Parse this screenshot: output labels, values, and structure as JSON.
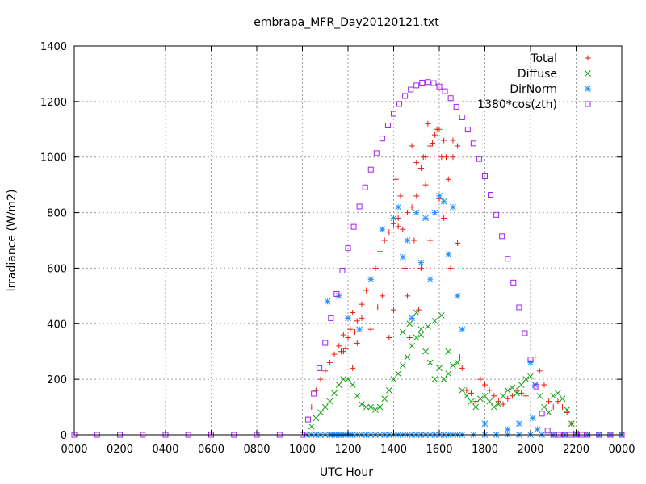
{
  "chart_data": {
    "type": "scatter",
    "title": "embrapa_MFR_Day20120121.txt",
    "xlabel": "UTC Hour",
    "ylabel": "Irradiance (W/m2)",
    "xlim": [
      0,
      2400
    ],
    "ylim": [
      0,
      1400
    ],
    "x_tick_labels": [
      "0000",
      "0200",
      "0400",
      "0600",
      "0800",
      "1000",
      "1200",
      "1400",
      "1600",
      "1800",
      "2000",
      "2200",
      "0000"
    ],
    "y_ticks": [
      0,
      200,
      400,
      600,
      800,
      1000,
      1200,
      1400
    ],
    "grid": true,
    "legend_position": "top-right",
    "series": [
      {
        "name": "Total",
        "marker": "+",
        "color": "#e51e10",
        "x": [
          1040,
          1060,
          1080,
          1100,
          1120,
          1140,
          1160,
          1170,
          1180,
          1190,
          1200,
          1210,
          1220,
          1230,
          1240,
          1260,
          1280,
          1300,
          1320,
          1340,
          1360,
          1380,
          1400,
          1420,
          1440,
          1460,
          1480,
          1500,
          1520,
          1540,
          1560,
          1580,
          1600,
          1620,
          1640,
          1660,
          1680,
          1700,
          1720,
          1740,
          1760,
          1780,
          1800,
          1820,
          1840,
          1860,
          1880,
          1900,
          1920,
          1940,
          1960,
          1980,
          2000,
          2020,
          2040,
          2060,
          2080,
          2100,
          2120,
          2140,
          2160,
          2180,
          2200,
          1180,
          1200,
          1220,
          1240,
          1260,
          1300,
          1330,
          1350,
          1380,
          1400,
          1410,
          1420,
          1430,
          1450,
          1460,
          1470,
          1480,
          1490,
          1500,
          1510,
          1520,
          1530,
          1540,
          1550,
          1560,
          1570,
          1580,
          1590,
          1600,
          1610,
          1620,
          1630,
          1650,
          1660,
          1680,
          1690
        ],
        "y": [
          100,
          160,
          200,
          230,
          260,
          290,
          320,
          300,
          360,
          310,
          420,
          380,
          440,
          370,
          410,
          470,
          520,
          560,
          600,
          660,
          700,
          730,
          760,
          780,
          740,
          800,
          820,
          860,
          960,
          1000,
          1040,
          1080,
          1100,
          1060,
          920,
          1000,
          1040,
          240,
          160,
          150,
          120,
          200,
          180,
          160,
          140,
          120,
          110,
          130,
          140,
          160,
          150,
          140,
          260,
          280,
          230,
          180,
          120,
          100,
          120,
          100,
          80,
          40,
          10,
          300,
          350,
          240,
          330,
          420,
          380,
          460,
          500,
          350,
          450,
          920,
          750,
          860,
          600,
          500,
          350,
          1040,
          700,
          980,
          450,
          600,
          1000,
          900,
          1120,
          700,
          1050,
          800,
          1100,
          850,
          1000,
          780,
          1000,
          600,
          1060,
          690,
          280
        ]
      },
      {
        "name": "Diffuse",
        "marker": "x",
        "color": "#10a010",
        "x": [
          1040,
          1060,
          1080,
          1100,
          1120,
          1140,
          1160,
          1180,
          1200,
          1220,
          1240,
          1260,
          1280,
          1300,
          1320,
          1340,
          1360,
          1380,
          1400,
          1420,
          1440,
          1460,
          1480,
          1500,
          1520,
          1540,
          1560,
          1580,
          1600,
          1620,
          1640,
          1660,
          1680,
          1700,
          1720,
          1740,
          1760,
          1780,
          1800,
          1820,
          1840,
          1860,
          1880,
          1900,
          1920,
          1940,
          1960,
          1980,
          2000,
          2020,
          2040,
          2060,
          2080,
          2100,
          2120,
          2140,
          2160,
          2180,
          2200,
          1440,
          1470,
          1500,
          1520,
          1550,
          1580,
          1610,
          1640,
          1660
        ],
        "y": [
          30,
          60,
          80,
          100,
          120,
          150,
          180,
          200,
          200,
          180,
          140,
          110,
          100,
          100,
          90,
          100,
          130,
          160,
          200,
          220,
          250,
          280,
          320,
          350,
          380,
          300,
          260,
          200,
          240,
          200,
          220,
          250,
          260,
          160,
          140,
          120,
          100,
          130,
          140,
          120,
          100,
          110,
          140,
          160,
          170,
          150,
          180,
          200,
          210,
          180,
          140,
          100,
          80,
          140,
          150,
          130,
          90,
          40,
          5,
          370,
          400,
          440,
          360,
          390,
          410,
          430,
          300,
          250
        ]
      },
      {
        "name": "DirNorm",
        "marker": "*",
        "color": "#1e90ff",
        "x": [
          1020,
          1040,
          1060,
          1080,
          1100,
          1120,
          1130,
          1140,
          1150,
          1160,
          1170,
          1180,
          1190,
          1200,
          1210,
          1220,
          1240,
          1260,
          1280,
          1300,
          1320,
          1340,
          1360,
          1380,
          1400,
          1420,
          1440,
          1460,
          1480,
          1500,
          1520,
          1540,
          1560,
          1580,
          1600,
          1620,
          1640,
          1660,
          1680,
          1700,
          1750,
          1800,
          1850,
          1900,
          1950,
          2000,
          2050,
          2100,
          2150,
          2200,
          2250,
          2300,
          2350,
          2400,
          1110,
          1160,
          1200,
          1250,
          1300,
          1350,
          1400,
          1420,
          1440,
          1460,
          1480,
          1500,
          1520,
          1540,
          1560,
          1580,
          1600,
          1620,
          1640,
          1660,
          1680,
          1700,
          1800,
          1900,
          1950,
          2000,
          2010,
          2020,
          2030
        ],
        "y": [
          0,
          0,
          0,
          0,
          0,
          0,
          0,
          0,
          0,
          0,
          0,
          0,
          0,
          0,
          0,
          0,
          0,
          0,
          0,
          0,
          0,
          0,
          0,
          0,
          0,
          0,
          0,
          0,
          0,
          0,
          0,
          0,
          0,
          0,
          0,
          0,
          0,
          0,
          0,
          0,
          0,
          0,
          0,
          0,
          0,
          0,
          0,
          0,
          0,
          0,
          0,
          0,
          0,
          0,
          480,
          500,
          420,
          380,
          560,
          740,
          780,
          820,
          640,
          700,
          420,
          800,
          620,
          780,
          560,
          800,
          860,
          840,
          650,
          820,
          500,
          380,
          40,
          20,
          40,
          260,
          60,
          180,
          20
        ]
      },
      {
        "name": "1380*cos(zth)",
        "marker": "square",
        "color": "#a020f0",
        "x": [
          0,
          100,
          200,
          300,
          400,
          500,
          600,
          700,
          800,
          900,
          1000,
          1025,
          1050,
          1075,
          1100,
          1125,
          1150,
          1175,
          1200,
          1225,
          1250,
          1275,
          1300,
          1325,
          1350,
          1375,
          1400,
          1425,
          1450,
          1475,
          1500,
          1525,
          1550,
          1575,
          1600,
          1625,
          1650,
          1675,
          1700,
          1725,
          1750,
          1775,
          1800,
          1825,
          1850,
          1875,
          1900,
          1925,
          1950,
          1975,
          2000,
          2025,
          2050,
          2075,
          2100,
          2125,
          2150,
          2175,
          2200,
          2225,
          2250,
          2300,
          2350,
          2400
        ],
        "y": [
          0,
          0,
          0,
          0,
          0,
          0,
          0,
          0,
          0,
          0,
          0,
          55,
          148,
          240,
          331,
          420,
          507,
          591,
          672,
          749,
          822,
          891,
          955,
          1014,
          1067,
          1114,
          1156,
          1191,
          1220,
          1243,
          1258,
          1268,
          1270,
          1266,
          1254,
          1237,
          1212,
          1181,
          1143,
          1099,
          1049,
          993,
          931,
          864,
          792,
          715,
          634,
          548,
          459,
          366,
          271,
          174,
          76,
          15,
          0,
          0,
          0,
          0,
          0,
          0,
          0,
          0,
          0,
          0
        ]
      }
    ]
  }
}
